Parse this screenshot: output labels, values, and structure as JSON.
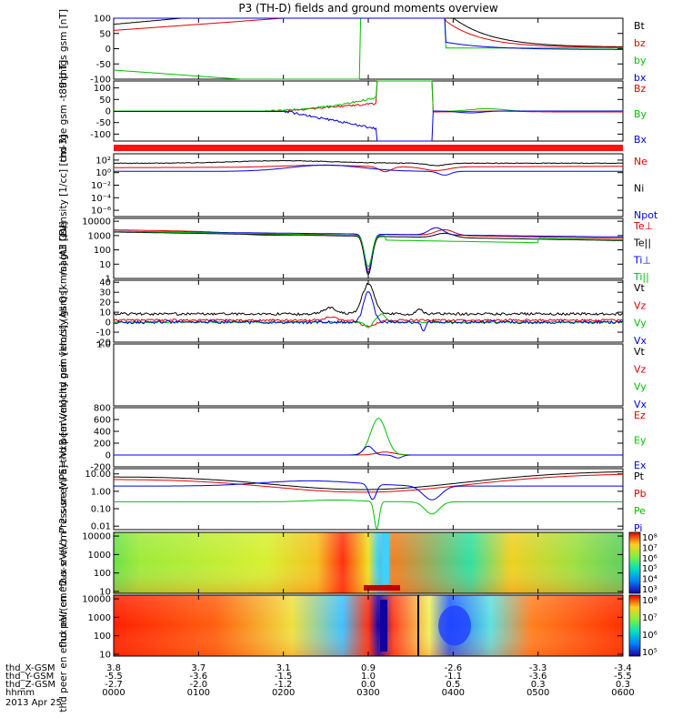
{
  "title": "P3 (TH-D) fields and ground moments overview",
  "chart_data": {
    "type": "line",
    "time_tick_labels": [
      "0000",
      "0100",
      "0200",
      "0300",
      "0400",
      "0500",
      "0600"
    ],
    "panels": [
      {
        "id": "fgs",
        "ylabel": "thd fgs gsm [nT]",
        "ylim": [
          -100,
          100
        ],
        "ticks": [
          "100",
          "50",
          "0",
          "-50",
          "-100"
        ],
        "tickvals": [
          100,
          50,
          0,
          -50,
          -100
        ],
        "scale": "linear",
        "legend": [
          {
            "name": "Bt",
            "color": "#000000"
          },
          {
            "name": "bz",
            "color": "#e00000"
          },
          {
            "name": "by",
            "color": "#00c000"
          },
          {
            "name": "bx",
            "color": "#0000e0"
          }
        ]
      },
      {
        "id": "fge",
        "ylabel": "thd fge gsm -t89 [nT]",
        "ylim": [
          -130,
          130
        ],
        "ticks": [
          "100",
          "50",
          "0",
          "-50",
          "-100"
        ],
        "tickvals": [
          100,
          50,
          0,
          -50,
          -100
        ],
        "scale": "linear",
        "legend": [
          {
            "name": "Bz",
            "color": "#e00000"
          },
          {
            "name": "By",
            "color": "#00c000"
          },
          {
            "name": "Bx",
            "color": "#0000e0"
          }
        ]
      },
      {
        "id": "density",
        "ylabel": "Density [1/cc] [cm-3]",
        "ylim": [
          -7,
          3
        ],
        "ticks": [
          "10²",
          "10⁰",
          "10⁻²",
          "10⁻⁴",
          "10⁻⁶"
        ],
        "tickvals": [
          2,
          0,
          -2,
          -4,
          -6
        ],
        "scale": "log",
        "legend": [
          {
            "name": "Ne",
            "color": "#e00000"
          },
          {
            "name": "Ni",
            "color": "#000000"
          },
          {
            "name": "Npot",
            "color": "#0000e0"
          }
        ]
      },
      {
        "id": "temp",
        "ylabel": "magt3 [eV]",
        "ylim": [
          0,
          4.2
        ],
        "ticks": [
          "10000",
          "1000",
          "100",
          "10",
          "1"
        ],
        "tickvals": [
          4,
          3,
          2,
          1,
          0
        ],
        "scale": "log",
        "legend": [
          {
            "name": "Te⊥",
            "color": "#e00000"
          },
          {
            "name": "Te||",
            "color": "#000000"
          },
          {
            "name": "Ti⊥",
            "color": "#0000e0"
          },
          {
            "name": "Ti||",
            "color": "#00c000"
          }
        ]
      },
      {
        "id": "peir",
        "ylabel": "thd peir velocity gsm [km/s] (All Qs)",
        "ylim": [
          -20,
          42
        ],
        "ticks": [
          "40",
          "30",
          "20",
          "10",
          "0",
          "-10",
          "-20"
        ],
        "tickvals": [
          40,
          30,
          20,
          10,
          0,
          -10,
          -20
        ],
        "scale": "linear",
        "legend": [
          {
            "name": "Vt",
            "color": "#000000"
          },
          {
            "name": "Vz",
            "color": "#e00000"
          },
          {
            "name": "Vy",
            "color": "#00c000"
          },
          {
            "name": "Vx",
            "color": "#0000e0"
          }
        ]
      },
      {
        "id": "peer",
        "ylabel": "thd peer velocity gsm [km/s] (All Qs)",
        "ylim": [
          -1,
          1
        ],
        "ticks": [
          "1.0"
        ],
        "tickvals": [
          1
        ],
        "scale": "linear",
        "legend": [
          {
            "name": "Vt",
            "color": "#000000"
          },
          {
            "name": "Vz",
            "color": "#e00000"
          },
          {
            "name": "Vy",
            "color": "#00c000"
          },
          {
            "name": "Vx",
            "color": "#0000e0"
          }
        ]
      },
      {
        "id": "efield",
        "ylabel": "E=-VxB [mV/m]",
        "ylim": [
          -200,
          800
        ],
        "ticks": [
          "800",
          "600",
          "400",
          "200",
          "0",
          "-200"
        ],
        "tickvals": [
          800,
          600,
          400,
          200,
          0,
          -200
        ],
        "scale": "linear",
        "legend": [
          {
            "name": "Ez",
            "color": "#e00000"
          },
          {
            "name": "Ey",
            "color": "#00c000"
          },
          {
            "name": "Ex",
            "color": "#0000e0"
          }
        ]
      },
      {
        "id": "pressure",
        "ylabel": "Pressure [nPa]",
        "ylim": [
          -2.2,
          1.3
        ],
        "ticks": [
          "10.00",
          "1.00",
          "0.10",
          "0.01"
        ],
        "tickvals": [
          1,
          0,
          -1,
          -2
        ],
        "scale": "log",
        "legend": [
          {
            "name": "Pt",
            "color": "#000000"
          },
          {
            "name": "Pb",
            "color": "#e00000"
          },
          {
            "name": "Pe",
            "color": "#00c000"
          },
          {
            "name": "Pi",
            "color": "#0000e0"
          }
        ]
      },
      {
        "id": "peir_spec",
        "ylabel": "thd peir en eflux eV/(cm^2-s-sr-eV)",
        "ylim": [
          0.9,
          4.2
        ],
        "ticks": [
          "10000",
          "1000",
          "100",
          "10"
        ],
        "tickvals": [
          4,
          3,
          2,
          1
        ],
        "scale": "log",
        "colorbar": [
          "10⁸",
          "10⁷",
          "10⁶",
          "10⁵",
          "10⁴",
          "10³"
        ]
      },
      {
        "id": "peer_spec",
        "ylabel": "thd peer en eflux eV/(cm^2-s-sr-eV)",
        "ylim": [
          0.9,
          4.2
        ],
        "ticks": [
          "10000",
          "1000",
          "100",
          "10"
        ],
        "tickvals": [
          4,
          3,
          2,
          1
        ],
        "scale": "log",
        "colorbar": [
          "10⁸",
          "10⁷",
          "10⁶",
          "10⁵"
        ]
      }
    ],
    "ephemeris": [
      {
        "name": "thd_X-GSM",
        "values": [
          "3.8",
          "3.7",
          "3.1",
          "0.9",
          "-2.6",
          "-3.3",
          "-3.4"
        ]
      },
      {
        "name": "thd_Y-GSM",
        "values": [
          "-5.5",
          "-3.6",
          "-1.5",
          "1.0",
          "-1.1",
          "-3.6",
          "-5.5"
        ]
      },
      {
        "name": "thd_Z-GSM",
        "values": [
          "-2.7",
          "-2.0",
          "-1.2",
          "0.0",
          "0.5",
          "0.3",
          "0.3"
        ]
      },
      {
        "name": "hhmm",
        "values": [
          "0000",
          "0100",
          "0200",
          "0300",
          "0400",
          "0500",
          "0600"
        ]
      }
    ],
    "date": "2013 Apr 25"
  }
}
